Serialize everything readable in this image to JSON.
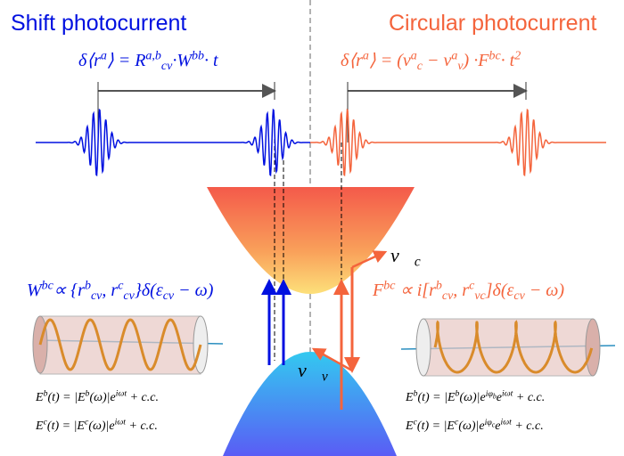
{
  "titles": {
    "left": "Shift photocurrent",
    "right": "Circular photocurrent"
  },
  "formulas": {
    "shift_displacement": [
      {
        "base": "δ⟨r",
        "sup": "a"
      },
      {
        "base": "⟩ = R",
        "sup": "a,b",
        "sub": "cv"
      },
      {
        "base": "·W",
        "sup": "bb"
      },
      {
        "base": "· t"
      }
    ],
    "circular_displacement": [
      {
        "base": "δ⟨r",
        "sup": "a"
      },
      {
        "base": "⟩ = (ν",
        "sup": "a",
        "sub": "c"
      },
      {
        "base": " − ν",
        "sup": "a",
        "sub": "v"
      },
      {
        "base": ") ·F",
        "sup": "bc"
      },
      {
        "base": "· t",
        "sup": "2"
      }
    ],
    "shift_vector": [
      {
        "base": "W",
        "sup": "bc"
      },
      {
        "base": "∝ {r",
        "sup": "b",
        "sub": "cv"
      },
      {
        "base": ", r",
        "sup": "c",
        "sub": "cv"
      },
      {
        "base": "}δ(ε",
        "sub": "cv"
      },
      {
        "base": " − ω)"
      }
    ],
    "berry_curvature": [
      {
        "base": "F",
        "sup": "bc"
      },
      {
        "base": " ∝ i[r",
        "sup": "b",
        "sub": "cv"
      },
      {
        "base": ", r",
        "sup": "c",
        "sub": "vc"
      },
      {
        "base": "]δ(ε",
        "sub": "cv"
      },
      {
        "base": " − ω)"
      }
    ],
    "velocity_c": [
      {
        "base": "ν⃗",
        "sub": "c"
      }
    ],
    "velocity_v": [
      {
        "base": "ν⃗",
        "sub": "v"
      }
    ],
    "linear_field_b": [
      {
        "base": "E",
        "sup": "b"
      },
      {
        "base": "(t) = |E",
        "sup": "b"
      },
      {
        "base": "(ω)|e",
        "sup": "iωt"
      },
      {
        "base": " + c.c."
      }
    ],
    "linear_field_c": [
      {
        "base": "E",
        "sup": "c"
      },
      {
        "base": "(t) = |E",
        "sup": "c"
      },
      {
        "base": "(ω)|e",
        "sup": "iωt"
      },
      {
        "base": " + c.c."
      }
    ],
    "circular_field_b": [
      {
        "base": "E",
        "sup": "b"
      },
      {
        "base": "(t) = |E",
        "sup": "b"
      },
      {
        "base": "(ω)|e",
        "sup": "iφ",
        "supsub": "b"
      },
      {
        "base": "e",
        "sup": "iωt"
      },
      {
        "base": " + c.c."
      }
    ],
    "circular_field_c": [
      {
        "base": "E",
        "sup": "c"
      },
      {
        "base": "(t) = |E",
        "sup": "c"
      },
      {
        "base": "(ω)|e",
        "sup": "iφ",
        "supsub": "c"
      },
      {
        "base": "e",
        "sup": "iωt"
      },
      {
        "base": " + c.c."
      }
    ]
  }
}
